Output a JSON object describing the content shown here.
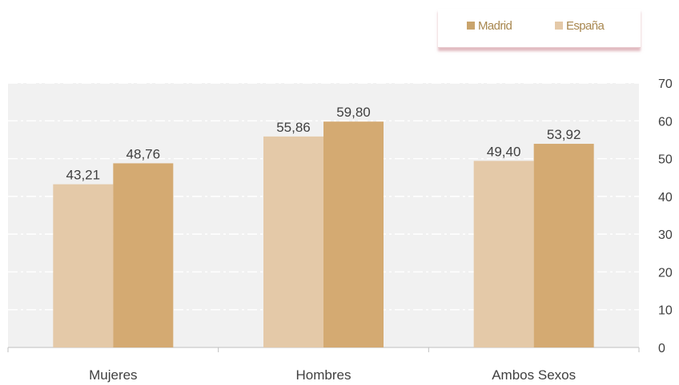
{
  "chart_data": {
    "type": "bar",
    "categories": [
      "Mujeres",
      "Hombres",
      "Ambos Sexos"
    ],
    "series": [
      {
        "name": "España",
        "values": [
          43.21,
          55.86,
          49.4
        ],
        "labels": [
          "43,21",
          "55,86",
          "49,40"
        ]
      },
      {
        "name": "Madrid",
        "values": [
          48.76,
          59.8,
          53.92
        ],
        "labels": [
          "48,76",
          "59,80",
          "53,92"
        ]
      }
    ],
    "legend_order": [
      "Madrid",
      "España"
    ],
    "ylim": [
      0,
      70
    ],
    "yticks": [
      "0",
      "10",
      "20",
      "30",
      "40",
      "50",
      "60",
      "70"
    ],
    "title": "",
    "xlabel": "",
    "ylabel": "",
    "grid": true,
    "legend_position": "top-right",
    "colors": {
      "España": "#e4c9a8",
      "Madrid": "#d4aa72",
      "plot_bg": "#f1f1f1",
      "gridline": "#ffffff",
      "text": "#404040"
    }
  }
}
